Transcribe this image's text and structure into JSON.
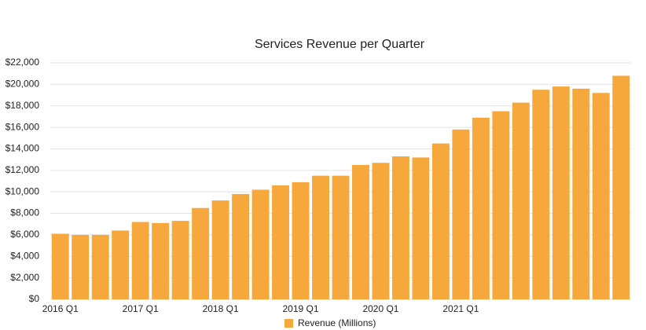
{
  "chart_data": {
    "type": "bar",
    "title": "Services Revenue per Quarter",
    "categories": [
      "2016 Q1",
      null,
      null,
      null,
      "2017 Q1",
      null,
      null,
      null,
      "2018 Q1",
      null,
      null,
      null,
      "2019 Q1",
      null,
      null,
      null,
      "2020 Q1",
      null,
      null,
      null,
      "2021 Q1",
      null,
      null,
      null,
      null,
      null,
      null,
      null,
      null
    ],
    "series": [
      {
        "name": "Revenue (Millions)",
        "color": "#f6a83c",
        "values": [
          6100,
          6000,
          6000,
          6400,
          7200,
          7100,
          7300,
          8500,
          9200,
          9800,
          10200,
          10600,
          10900,
          11500,
          11500,
          12500,
          12700,
          13300,
          13200,
          14500,
          15800,
          16900,
          17500,
          18300,
          19500,
          19800,
          19600,
          19200,
          20800
        ]
      }
    ],
    "ylim": [
      0,
      22000
    ],
    "yticks": [
      {
        "value": 0,
        "label": "$0"
      },
      {
        "value": 2000,
        "label": "$2,000"
      },
      {
        "value": 4000,
        "label": "$4,000"
      },
      {
        "value": 6000,
        "label": "$6,000"
      },
      {
        "value": 8000,
        "label": "$8,000"
      },
      {
        "value": 10000,
        "label": "$10,000"
      },
      {
        "value": 12000,
        "label": "$12,000"
      },
      {
        "value": 14000,
        "label": "$14,000"
      },
      {
        "value": 16000,
        "label": "$16,000"
      },
      {
        "value": 18000,
        "label": "$18,000"
      },
      {
        "value": 20000,
        "label": "$20,000"
      },
      {
        "value": 22000,
        "label": "$22,000"
      }
    ],
    "grid": true,
    "legend": "bottom"
  }
}
